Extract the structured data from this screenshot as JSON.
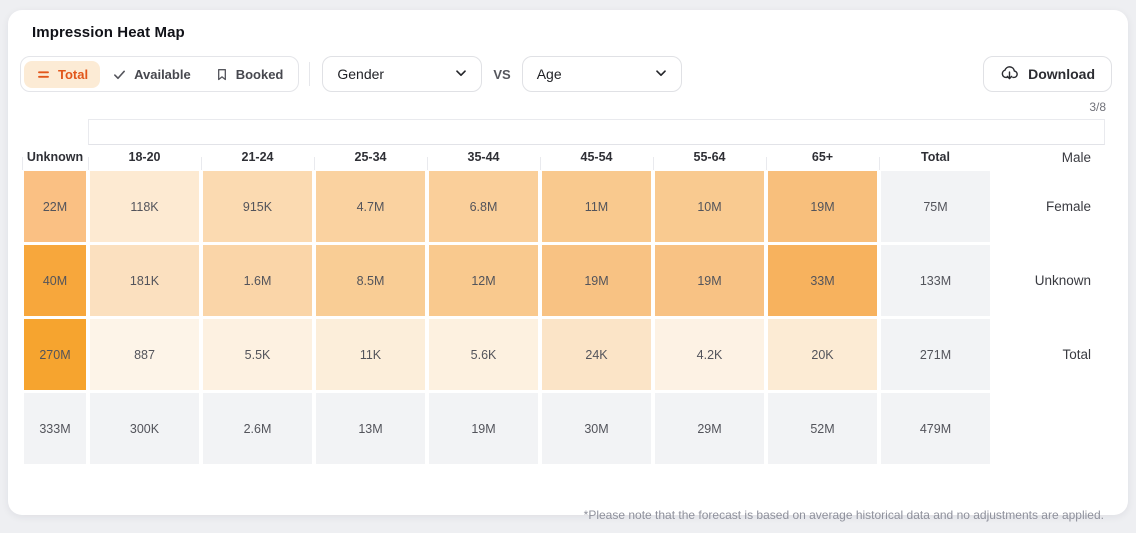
{
  "title": "Impression Heat Map",
  "toolbar": {
    "modes": [
      {
        "label": "Total",
        "icon": "equals-icon",
        "active": true
      },
      {
        "label": "Available",
        "icon": "check-icon",
        "active": false
      },
      {
        "label": "Booked",
        "icon": "bookmark-icon",
        "active": false
      }
    ],
    "dimension_x": "Gender",
    "vs_label": "VS",
    "dimension_y": "Age",
    "download_label": "Download"
  },
  "pager": "3/8",
  "colors": {
    "accent": "#E2571B",
    "accent_bg": "#FCEBD5",
    "total_cell_bg": "#F2F3F5"
  },
  "chart_data": {
    "type": "heatmap",
    "title": "Impression Heat Map",
    "x_categories": [
      "Unknown",
      "18-20",
      "21-24",
      "25-34",
      "35-44",
      "45-54",
      "55-64",
      "65+",
      "Total"
    ],
    "y_categories": [
      "Male",
      "Female",
      "Unknown",
      "Total"
    ],
    "values": [
      [
        "22M",
        "118K",
        "915K",
        "4.7M",
        "6.8M",
        "11M",
        "10M",
        "19M",
        "75M"
      ],
      [
        "40M",
        "181K",
        "1.6M",
        "8.5M",
        "12M",
        "19M",
        "19M",
        "33M",
        "133M"
      ],
      [
        "270M",
        "887",
        "5.5K",
        "11K",
        "5.6K",
        "24K",
        "4.2K",
        "20K",
        "271M"
      ],
      [
        "333M",
        "300K",
        "2.6M",
        "13M",
        "19M",
        "30M",
        "29M",
        "52M",
        "479M"
      ]
    ],
    "cell_colors": [
      [
        "#FAC083",
        "#FDEAD2",
        "#FBDAB1",
        "#FAD2A0",
        "#FACF9A",
        "#F9C98E",
        "#F9CA90",
        "#F8BF7C",
        "#F2F3F5"
      ],
      [
        "#F7A73C",
        "#FBE0BF",
        "#FAD5A8",
        "#F9CD95",
        "#F9C98E",
        "#F8C283",
        "#F8C284",
        "#F7B25E",
        "#F2F3F5"
      ],
      [
        "#F6A42F",
        "#FDF4E8",
        "#FDF1E1",
        "#FCEEDA",
        "#FDF1E0",
        "#FBE4C7",
        "#FDF2E4",
        "#FCEBD4",
        "#F2F3F5"
      ],
      [
        "#F2F3F5",
        "#F2F3F5",
        "#F2F3F5",
        "#F2F3F5",
        "#F2F3F5",
        "#F2F3F5",
        "#F2F3F5",
        "#F2F3F5",
        "#F2F3F5"
      ]
    ],
    "legend_position": "none",
    "grid": true
  },
  "footnote": "*Please note that the forecast is based on average historical data and no adjustments are applied."
}
